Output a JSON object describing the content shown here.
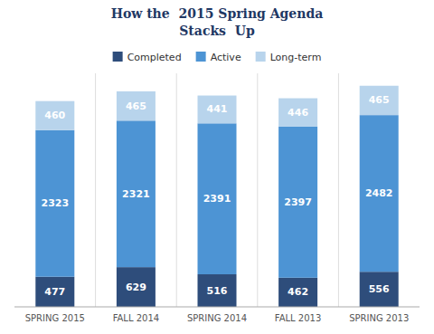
{
  "chart_data": {
    "type": "bar",
    "stacked": true,
    "title": "How the  2015 Spring Agenda",
    "subtitle": "Stacks  Up",
    "categories": [
      "SPRING 2015",
      "FALL 2014",
      "SPRING 2014",
      "FALL 2013",
      "SPRING 2013"
    ],
    "series": [
      {
        "name": "Completed",
        "color": "#2e4d7b",
        "values": [
          477,
          629,
          516,
          462,
          556
        ]
      },
      {
        "name": "Active",
        "color": "#4d94d4",
        "values": [
          2323,
          2321,
          2391,
          2397,
          2482
        ]
      },
      {
        "name": "Long-term",
        "color": "#b8d4ec",
        "values": [
          460,
          465,
          441,
          446,
          465
        ]
      }
    ],
    "ylim": [
      0,
      3700
    ],
    "data_labels": true,
    "tick_labels": "x",
    "legend": "top"
  }
}
